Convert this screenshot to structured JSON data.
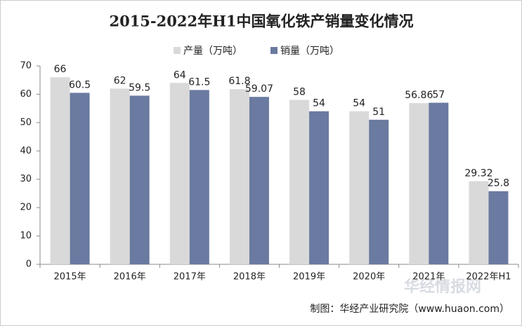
{
  "chart_data": {
    "type": "bar",
    "title": "2015-2022年H1中国氧化铁产销量变化情况",
    "categories": [
      "2015年",
      "2016年",
      "2017年",
      "2018年",
      "2019年",
      "2020年",
      "2021年",
      "2022年H1"
    ],
    "series": [
      {
        "name": "产量（万吨）",
        "color": "#d9d9d9",
        "values": [
          66,
          62,
          64,
          61.8,
          58,
          54,
          56.86,
          29.32
        ]
      },
      {
        "name": "销量（万吨）",
        "color": "#6a7aa0",
        "values": [
          60.5,
          59.5,
          61.5,
          59.07,
          54,
          51,
          57,
          25.8
        ]
      }
    ],
    "ylim": [
      0,
      70
    ],
    "yticks": [
      0,
      10,
      20,
      30,
      40,
      50,
      60,
      70
    ],
    "grid": false,
    "legend": "top",
    "source": "制图：华经产业研究院（www.huaon.com）",
    "watermark": "华经情报网"
  }
}
